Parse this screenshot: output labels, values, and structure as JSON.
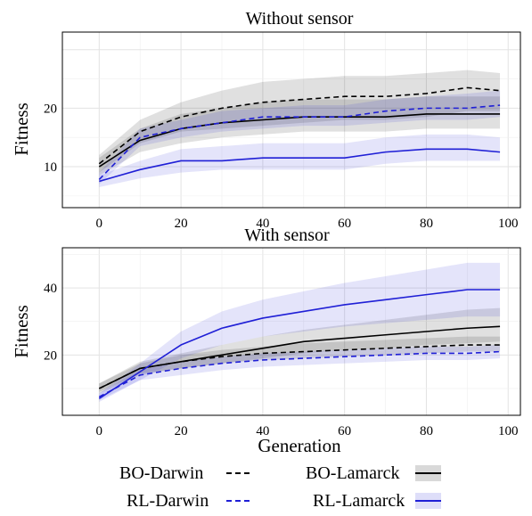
{
  "chart_data": [
    {
      "type": "line",
      "title": "Without sensor",
      "ylabel": "Fitness",
      "xlabel": "",
      "xlim": [
        -9,
        103
      ],
      "ylim": [
        3,
        33
      ],
      "xticks": [
        0,
        20,
        40,
        60,
        80,
        100
      ],
      "yticks": [
        10,
        20
      ],
      "grid": true,
      "series": [
        {
          "name": "BO-Darwin",
          "color": "#000000",
          "dash": true,
          "x": [
            0,
            10,
            20,
            30,
            40,
            50,
            60,
            70,
            80,
            90,
            98
          ],
          "y": [
            10.5,
            16.0,
            18.5,
            20.0,
            21.0,
            21.5,
            22.0,
            22.0,
            22.5,
            23.5,
            23.0
          ],
          "band_lo": [
            9.0,
            14.0,
            16.0,
            16.5,
            17.0,
            17.5,
            18.0,
            18.0,
            18.5,
            19.5,
            19.5
          ],
          "band_hi": [
            12.0,
            18.0,
            21.0,
            23.0,
            24.5,
            25.0,
            25.5,
            25.5,
            26.0,
            26.5,
            26.0
          ]
        },
        {
          "name": "BO-Lamarck",
          "color": "#000000",
          "dash": false,
          "x": [
            0,
            10,
            20,
            30,
            40,
            50,
            60,
            70,
            80,
            90,
            98
          ],
          "y": [
            10.0,
            14.5,
            16.5,
            17.5,
            18.0,
            18.5,
            18.5,
            18.5,
            19.0,
            19.0,
            19.0
          ],
          "band_lo": [
            8.5,
            12.5,
            14.0,
            15.0,
            15.5,
            16.0,
            16.0,
            16.0,
            16.5,
            16.5,
            16.5
          ],
          "band_hi": [
            11.5,
            16.5,
            19.0,
            20.0,
            21.0,
            21.5,
            21.5,
            21.5,
            22.0,
            22.0,
            22.0
          ]
        },
        {
          "name": "RL-Darwin",
          "color": "#1f1fd6",
          "dash": true,
          "x": [
            0,
            10,
            20,
            30,
            40,
            50,
            60,
            70,
            80,
            90,
            98
          ],
          "y": [
            7.8,
            15.0,
            16.5,
            17.5,
            18.5,
            18.5,
            18.5,
            19.5,
            20.0,
            20.0,
            20.5
          ],
          "band_lo": [
            7.0,
            13.5,
            15.0,
            16.0,
            16.5,
            17.0,
            17.0,
            17.5,
            18.0,
            18.0,
            18.5
          ],
          "band_hi": [
            9.0,
            16.5,
            18.0,
            19.5,
            20.0,
            20.5,
            20.5,
            21.5,
            22.0,
            22.5,
            23.0
          ]
        },
        {
          "name": "RL-Lamarck",
          "color": "#1f1fd6",
          "dash": false,
          "x": [
            0,
            10,
            20,
            30,
            40,
            50,
            60,
            70,
            80,
            90,
            98
          ],
          "y": [
            7.5,
            9.5,
            11.0,
            11.0,
            11.5,
            11.5,
            11.5,
            12.5,
            13.0,
            13.0,
            12.5
          ],
          "band_lo": [
            6.5,
            8.0,
            9.0,
            9.5,
            9.5,
            9.5,
            9.5,
            10.5,
            11.0,
            11.0,
            11.0
          ],
          "band_hi": [
            8.5,
            11.0,
            13.0,
            13.5,
            14.0,
            14.0,
            14.0,
            15.0,
            15.5,
            15.5,
            15.0
          ]
        }
      ]
    },
    {
      "type": "line",
      "title": "With sensor",
      "ylabel": "Fitness",
      "xlabel": "Generation",
      "xlim": [
        -9,
        103
      ],
      "ylim": [
        2,
        52
      ],
      "xticks": [
        0,
        20,
        40,
        60,
        80,
        100
      ],
      "yticks": [
        20,
        40
      ],
      "grid": true,
      "series": [
        {
          "name": "BO-Darwin",
          "color": "#000000",
          "dash": true,
          "x": [
            0,
            10,
            20,
            30,
            40,
            50,
            60,
            70,
            80,
            90,
            98
          ],
          "y": [
            10.0,
            16.0,
            18.0,
            19.5,
            20.5,
            21.0,
            21.5,
            22.0,
            22.5,
            23.0,
            23.0
          ],
          "band_lo": [
            9.0,
            14.5,
            16.0,
            17.5,
            18.5,
            19.0,
            19.5,
            20.0,
            20.5,
            21.0,
            21.0
          ],
          "band_hi": [
            11.5,
            17.5,
            20.0,
            21.5,
            22.5,
            23.5,
            24.0,
            24.5,
            25.0,
            25.5,
            25.5
          ]
        },
        {
          "name": "BO-Lamarck",
          "color": "#000000",
          "dash": false,
          "x": [
            0,
            10,
            20,
            30,
            40,
            50,
            60,
            70,
            80,
            90,
            98
          ],
          "y": [
            10.0,
            16.0,
            18.0,
            20.0,
            22.0,
            24.0,
            25.0,
            26.0,
            27.0,
            28.0,
            28.5
          ],
          "band_lo": [
            8.5,
            14.0,
            16.0,
            17.5,
            19.0,
            20.5,
            21.5,
            22.0,
            23.0,
            23.5,
            24.0
          ],
          "band_hi": [
            11.5,
            18.0,
            20.5,
            23.0,
            25.5,
            27.5,
            29.0,
            30.5,
            32.0,
            33.5,
            34.0
          ]
        },
        {
          "name": "RL-Darwin",
          "color": "#1f1fd6",
          "dash": true,
          "x": [
            0,
            10,
            20,
            30,
            40,
            50,
            60,
            70,
            80,
            90,
            98
          ],
          "y": [
            7.5,
            14.0,
            16.0,
            17.5,
            18.5,
            19.0,
            19.5,
            20.0,
            20.5,
            20.5,
            21.0
          ],
          "band_lo": [
            6.5,
            12.5,
            14.0,
            15.5,
            16.5,
            17.0,
            17.5,
            18.0,
            18.5,
            18.5,
            19.0
          ],
          "band_hi": [
            8.5,
            15.5,
            18.0,
            19.5,
            20.5,
            21.0,
            21.5,
            22.0,
            22.5,
            22.5,
            23.0
          ]
        },
        {
          "name": "RL-Lamarck",
          "color": "#1f1fd6",
          "dash": false,
          "x": [
            0,
            10,
            20,
            30,
            40,
            50,
            60,
            70,
            80,
            90,
            98
          ],
          "y": [
            7.0,
            15.0,
            23.0,
            28.0,
            31.0,
            33.0,
            35.0,
            36.5,
            38.0,
            39.5,
            39.5
          ],
          "band_lo": [
            6.0,
            12.5,
            19.0,
            23.0,
            25.5,
            27.0,
            28.5,
            29.5,
            30.5,
            31.5,
            31.5
          ],
          "band_hi": [
            8.5,
            17.5,
            27.0,
            33.0,
            36.5,
            39.0,
            41.5,
            43.5,
            45.5,
            47.5,
            47.5
          ]
        }
      ]
    }
  ],
  "legend": {
    "placement": "bottom",
    "entries": [
      {
        "label": "BO-Darwin",
        "color": "#000000",
        "dash": true
      },
      {
        "label": "BO-Lamarck",
        "color": "#000000",
        "dash": false
      },
      {
        "label": "RL-Darwin",
        "color": "#1f1fd6",
        "dash": true
      },
      {
        "label": "RL-Lamarck",
        "color": "#1f1fd6",
        "dash": false
      }
    ]
  }
}
